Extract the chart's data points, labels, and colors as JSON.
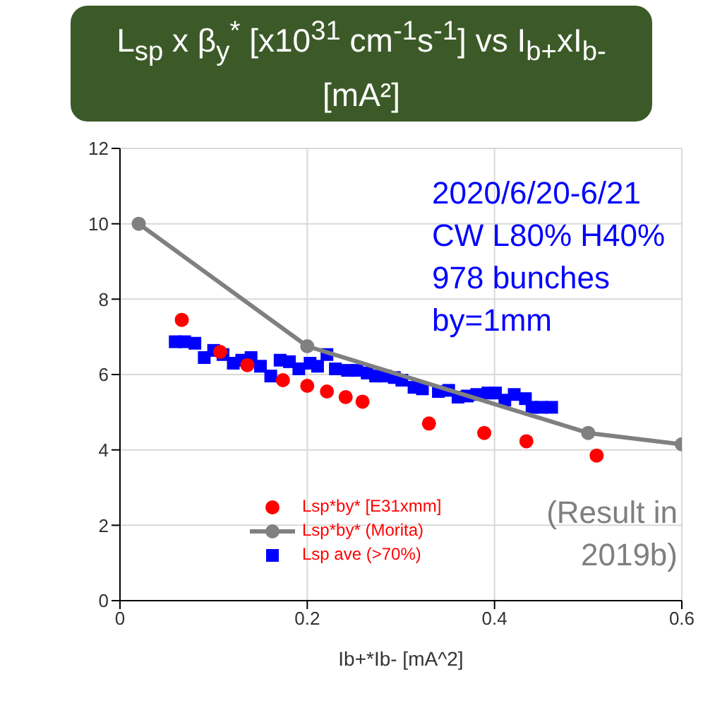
{
  "chart_data": {
    "type": "scatter",
    "title": "L$_{sp}$ x β$_{y}$$^{*}$ [x10$^{31}$ cm$^{-1}$s$^{-1}$] vs I$_{b+}$xI$_{b-}$[mA²]",
    "xlabel": "Ib+*Ib- [mA^2]",
    "xlim": [
      0,
      0.6
    ],
    "xticks": [
      0,
      0.2,
      0.4,
      0.6
    ],
    "ylim": [
      0,
      12
    ],
    "yticks": [
      0,
      2,
      4,
      6,
      8,
      10,
      12
    ],
    "grid": true,
    "legend": "bottom left",
    "annotations": [
      "2020/6/20-6/21",
      "CW L80% H40%",
      "978 bunches",
      "by=1mm",
      "(Result in 2019b)"
    ],
    "series": [
      {
        "name": "Lsp*by* [E31xmm]",
        "type": "scatter",
        "marker": "circle",
        "color": "#ff0000",
        "x": [
          0.066,
          0.107,
          0.136,
          0.174,
          0.2,
          0.221,
          0.241,
          0.259,
          0.33,
          0.389,
          0.434,
          0.509
        ],
        "values": [
          7.45,
          6.6,
          6.25,
          5.85,
          5.7,
          5.55,
          5.4,
          5.28,
          4.7,
          4.45,
          4.23,
          3.85
        ]
      },
      {
        "name": "Lsp*by* (Morita)",
        "type": "line",
        "marker": "circle",
        "color": "#808080",
        "x": [
          0.02,
          0.2,
          0.5,
          0.6
        ],
        "values": [
          10,
          6.75,
          4.45,
          4.15
        ]
      },
      {
        "name": "Lsp ave (>70%)",
        "type": "scatter",
        "marker": "square",
        "color": "#0000ff",
        "x": [
          0.059,
          0.069,
          0.08,
          0.09,
          0.1,
          0.11,
          0.121,
          0.13,
          0.14,
          0.15,
          0.161,
          0.171,
          0.181,
          0.191,
          0.203,
          0.211,
          0.221,
          0.23,
          0.243,
          0.253,
          0.264,
          0.273,
          0.283,
          0.293,
          0.301,
          0.314,
          0.323,
          0.34,
          0.351,
          0.361,
          0.371,
          0.381,
          0.393,
          0.401,
          0.411,
          0.421,
          0.433,
          0.44,
          0.45,
          0.461
        ],
        "values": [
          6.87,
          6.87,
          6.83,
          6.45,
          6.64,
          6.53,
          6.3,
          6.38,
          6.45,
          6.22,
          5.96,
          6.38,
          6.34,
          6.15,
          6.3,
          6.22,
          6.53,
          6.15,
          6.11,
          6.11,
          6.04,
          5.96,
          5.96,
          5.92,
          5.85,
          5.66,
          5.62,
          5.55,
          5.58,
          5.4,
          5.43,
          5.47,
          5.51,
          5.51,
          5.32,
          5.47,
          5.36,
          5.13,
          5.13,
          5.13
        ]
      }
    ]
  }
}
